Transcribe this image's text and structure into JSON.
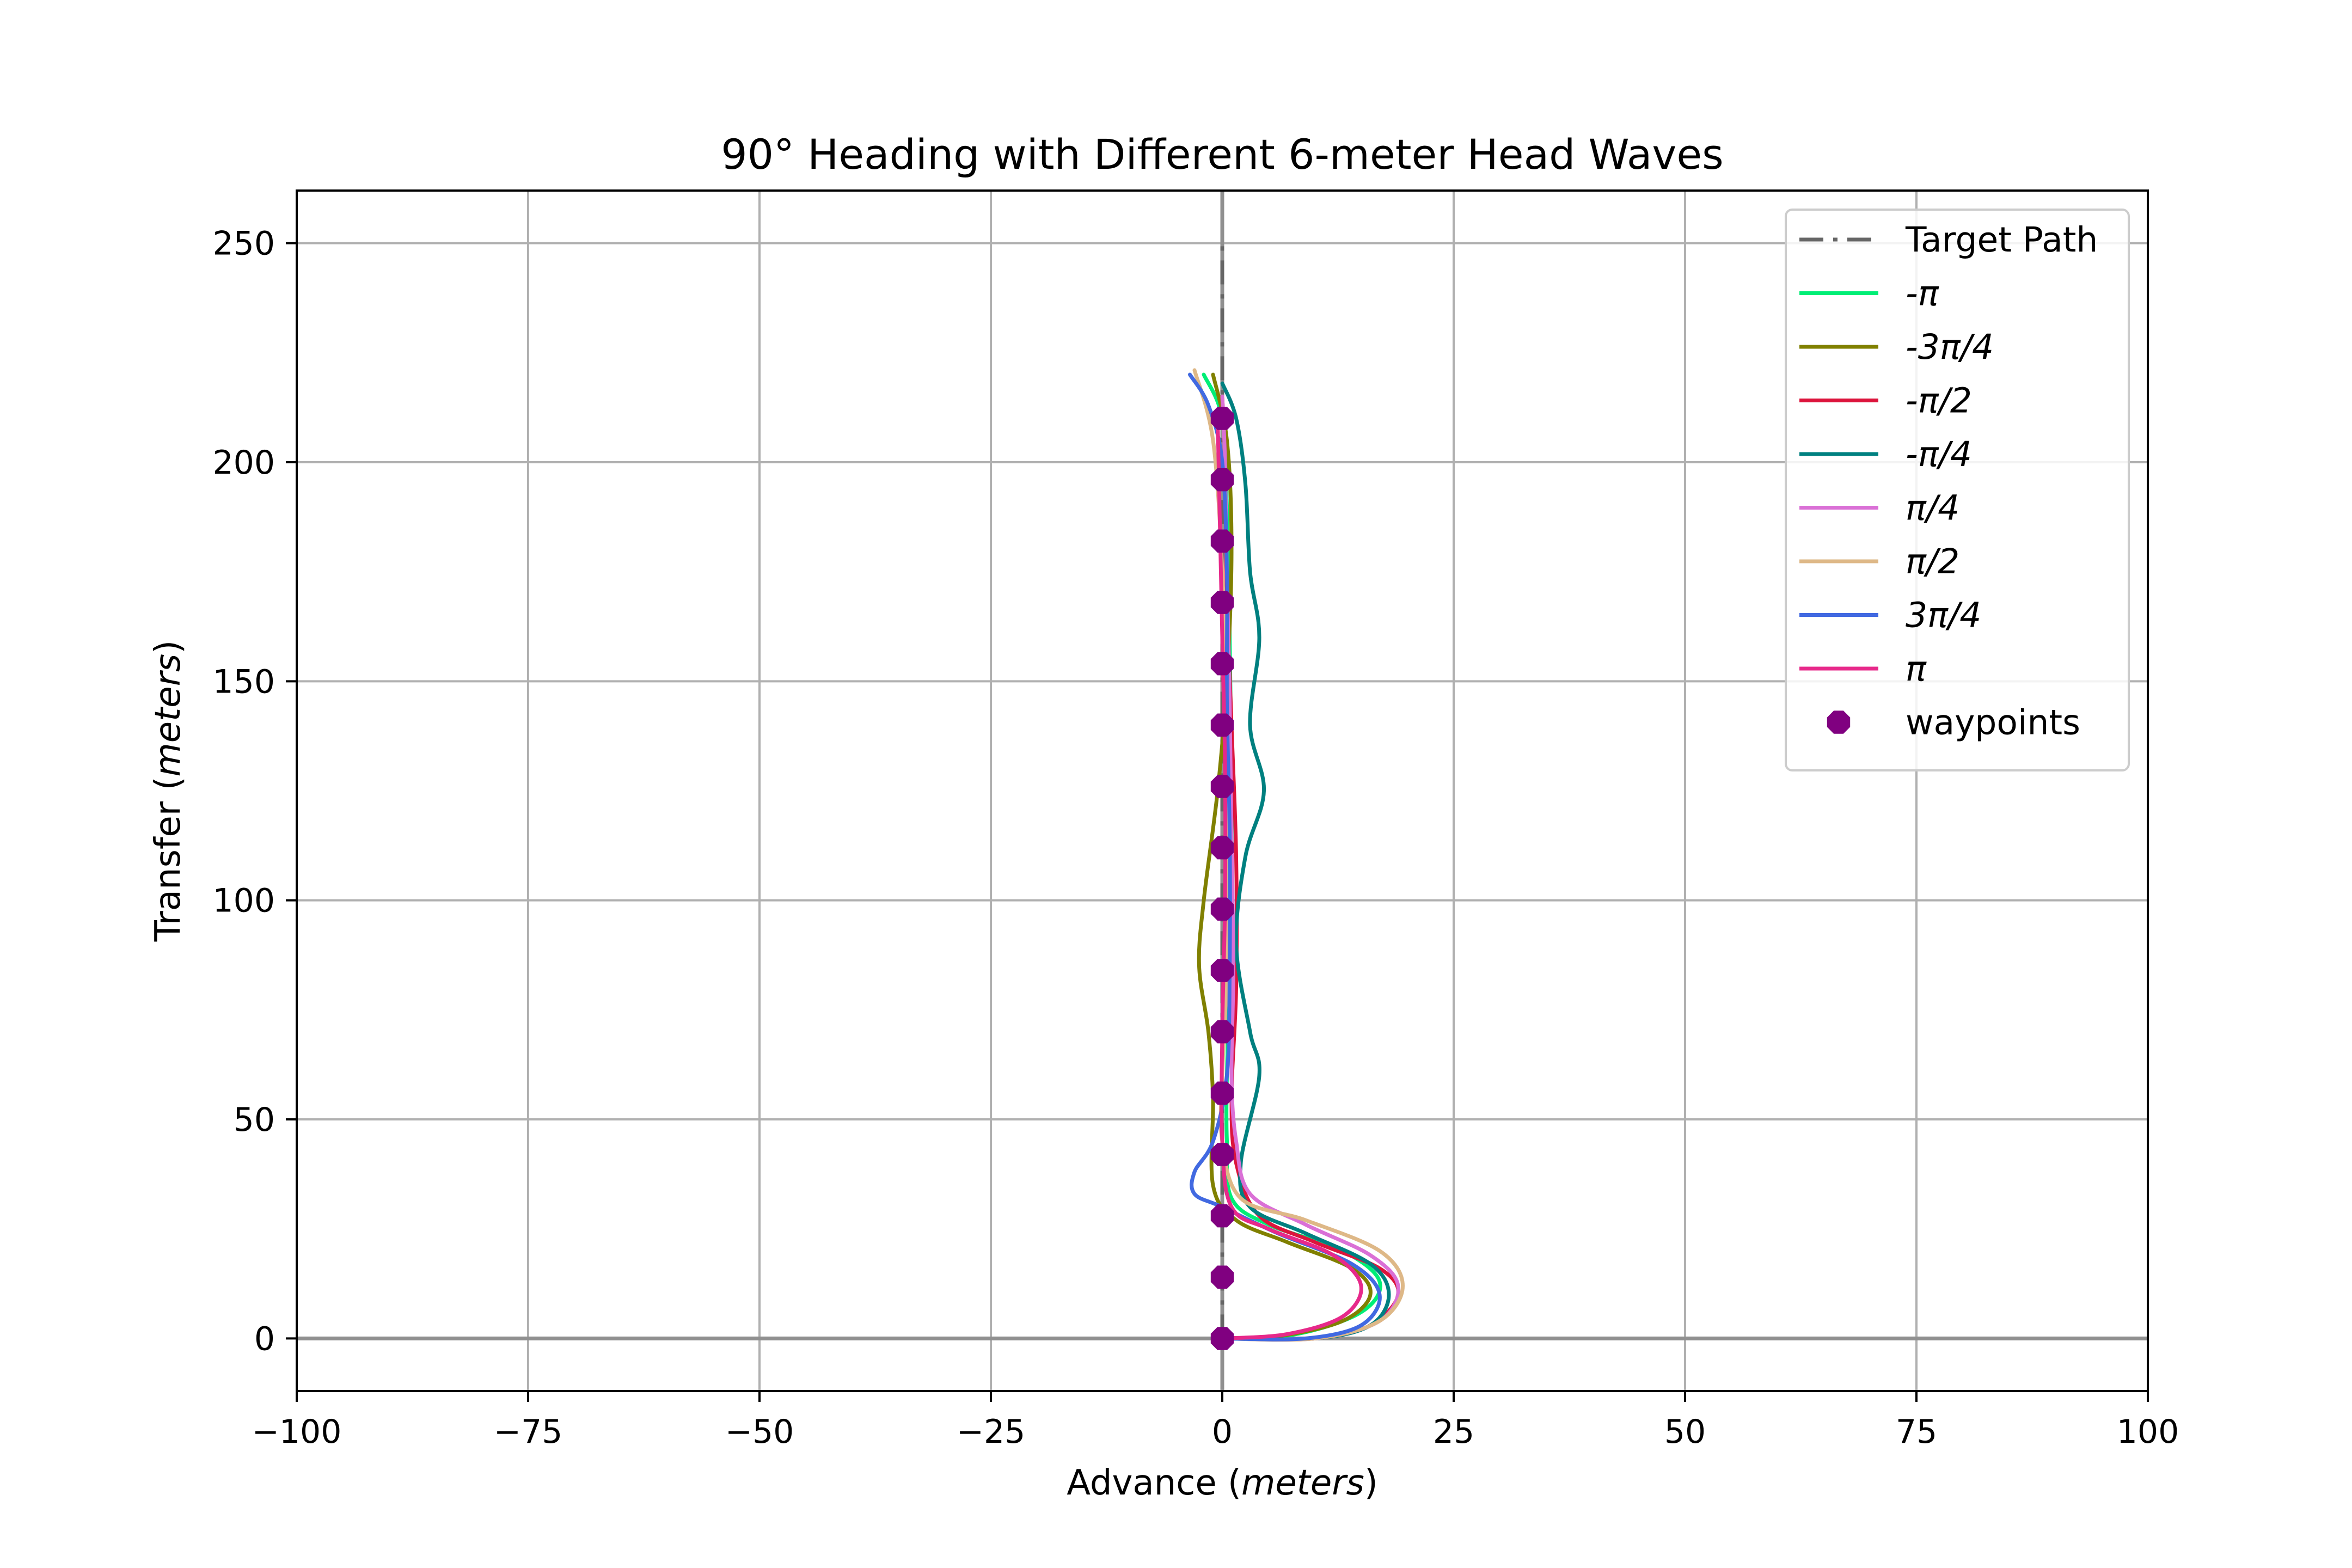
{
  "chart_data": {
    "type": "line",
    "title": "90° Heading with Different 6-meter Head Waves",
    "xlabel": "Advance",
    "xlabel_unit": "meters",
    "ylabel": "Transfer",
    "ylabel_unit": "meters",
    "xlim": [
      -100,
      100
    ],
    "ylim": [
      -12,
      262
    ],
    "xticks": [
      -100,
      -75,
      -50,
      -25,
      0,
      25,
      50,
      75,
      100
    ],
    "yticks": [
      0,
      50,
      100,
      150,
      200,
      250
    ],
    "xtick_labels": [
      "−100",
      "−75",
      "−50",
      "−25",
      "0",
      "25",
      "50",
      "75",
      "100"
    ],
    "ytick_labels": [
      "0",
      "50",
      "100",
      "150",
      "200",
      "250"
    ],
    "grid": true,
    "legend_position": "top-right",
    "target_path": {
      "name": "Target Path",
      "color": "#666666",
      "x": [
        0,
        0
      ],
      "y": [
        0,
        250
      ]
    },
    "series": [
      {
        "name": "-π",
        "color": "#00ee76",
        "x": [
          0,
          8,
          15,
          17,
          13,
          5,
          1,
          0.5,
          0.5,
          0.8,
          1.0,
          1.0,
          0.8,
          0.5,
          0,
          -2
        ],
        "y": [
          0,
          1,
          6,
          13,
          20,
          26,
          32,
          45,
          60,
          80,
          100,
          130,
          160,
          190,
          210,
          220
        ]
      },
      {
        "name": "-3π/4",
        "color": "#808000",
        "x": [
          0,
          6,
          13,
          16,
          14,
          7,
          1.5,
          -1,
          -1,
          -1.5,
          -2.5,
          -2,
          -0.5,
          0.5,
          1,
          0.5,
          -1
        ],
        "y": [
          0,
          0.5,
          4,
          10,
          16,
          22,
          27,
          35,
          55,
          70,
          85,
          100,
          125,
          150,
          180,
          205,
          220
        ]
      },
      {
        "name": "-π/2",
        "color": "#dc143c",
        "x": [
          0,
          10,
          16,
          19,
          17,
          10,
          4,
          1.5,
          1,
          1.5,
          1.5,
          1,
          0.5,
          0.3,
          0
        ],
        "y": [
          0,
          0,
          3,
          10,
          16,
          22,
          28,
          40,
          55,
          80,
          110,
          140,
          170,
          200,
          215
        ]
      },
      {
        "name": "-π/4",
        "color": "#008080",
        "x": [
          0,
          10,
          16,
          18,
          16,
          9,
          3,
          2,
          4,
          3,
          1.5,
          2.5,
          4.5,
          3,
          4,
          3,
          2.5,
          1.5,
          0
        ],
        "y": [
          0,
          0,
          3,
          10,
          17,
          24,
          30,
          40,
          60,
          70,
          90,
          110,
          125,
          140,
          160,
          175,
          195,
          210,
          218
        ]
      },
      {
        "name": "π/4",
        "color": "#da70d6",
        "x": [
          0,
          10,
          17,
          19,
          16,
          9,
          3,
          1.5,
          1,
          1.2,
          1,
          0.8,
          0.5,
          0.3,
          0
        ],
        "y": [
          0,
          0,
          4,
          12,
          19,
          26,
          33,
          45,
          60,
          85,
          115,
          145,
          175,
          200,
          215
        ]
      },
      {
        "name": "π/2",
        "color": "#deb887",
        "x": [
          0,
          10,
          17,
          19.5,
          17,
          9,
          2,
          0,
          0,
          0.5,
          0.5,
          0.3,
          0,
          -1,
          -3
        ],
        "y": [
          0,
          0,
          4,
          12,
          20,
          27,
          32,
          45,
          60,
          85,
          115,
          145,
          175,
          205,
          221
        ]
      },
      {
        "name": "3π/4",
        "color": "#4169e1",
        "x": [
          0,
          9,
          15,
          17,
          14,
          6,
          0,
          -3,
          -3,
          -1,
          0.5,
          0.8,
          0.8,
          0.5,
          0.5,
          0,
          -1.5,
          -3.5
        ],
        "y": [
          0,
          0,
          3,
          10,
          17,
          24,
          30,
          33,
          38,
          45,
          60,
          85,
          115,
          145,
          175,
          200,
          213,
          220
        ]
      },
      {
        "name": "π",
        "color": "#e7298a",
        "x": [
          0,
          7,
          13,
          15,
          12,
          5,
          1,
          0,
          0,
          0.3,
          0.3,
          0,
          -0.3,
          -0.5
        ],
        "y": [
          0,
          1,
          5,
          12,
          19,
          25,
          30,
          45,
          70,
          100,
          130,
          160,
          190,
          210
        ]
      }
    ],
    "waypoints": {
      "name": "waypoints",
      "color": "#800080",
      "x": [
        0,
        0,
        0,
        0,
        0,
        0,
        0,
        0,
        0,
        0,
        0,
        0,
        0,
        0,
        0,
        0
      ],
      "y": [
        0,
        14,
        28,
        42,
        56,
        70,
        84,
        98,
        112,
        126,
        140,
        154,
        168,
        182,
        196,
        210
      ]
    },
    "zero_lines": true
  }
}
